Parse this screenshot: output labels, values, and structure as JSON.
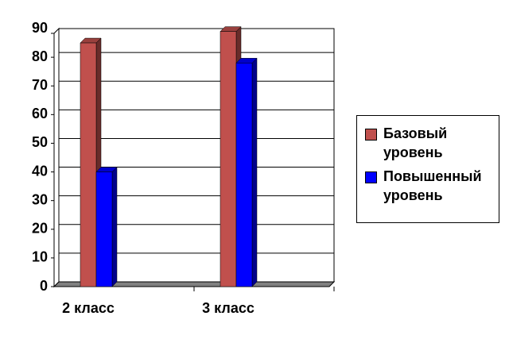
{
  "chart_data": {
    "type": "bar3d",
    "categories": [
      "2 класс",
      "3 класс"
    ],
    "series": [
      {
        "name": "Базовый уровень",
        "color": "#c0504d",
        "values": [
          85,
          89
        ]
      },
      {
        "name": "Повышенный уровень",
        "color": "#0000ff",
        "values": [
          40,
          78
        ]
      }
    ],
    "ylim": [
      0,
      90
    ],
    "yticks": [
      0,
      10,
      20,
      30,
      40,
      50,
      60,
      70,
      80,
      90
    ],
    "grid": true,
    "legend": "right"
  }
}
